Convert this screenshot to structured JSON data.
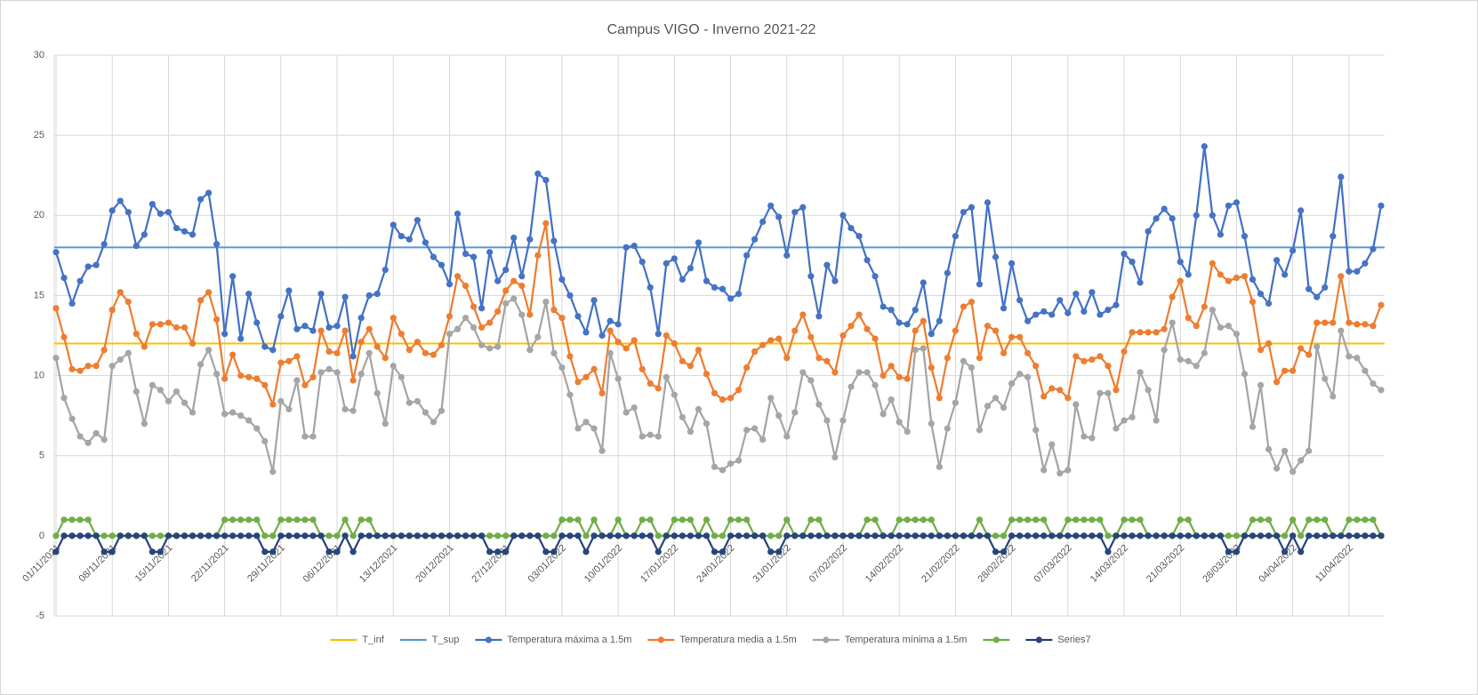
{
  "chart_data": {
    "type": "line",
    "title": "Campus VIGO -  Inverno 2021-22",
    "categories": [
      "01/11/2021",
      null,
      null,
      null,
      null,
      null,
      null,
      "08/11/2021",
      null,
      null,
      null,
      null,
      null,
      null,
      "15/11/2021",
      null,
      null,
      null,
      null,
      null,
      null,
      "22/11/2021",
      null,
      null,
      null,
      null,
      null,
      null,
      "29/11/2021",
      null,
      null,
      null,
      null,
      null,
      null,
      "06/12/2021",
      null,
      null,
      null,
      null,
      null,
      null,
      "13/12/2021",
      null,
      null,
      null,
      null,
      null,
      null,
      "20/12/2021",
      null,
      null,
      null,
      null,
      null,
      null,
      "27/12/2021",
      null,
      null,
      null,
      null,
      null,
      null,
      "03/01/2022",
      null,
      null,
      null,
      null,
      null,
      null,
      "10/01/2022",
      null,
      null,
      null,
      null,
      null,
      null,
      "17/01/2022",
      null,
      null,
      null,
      null,
      null,
      null,
      "24/01/2022",
      null,
      null,
      null,
      null,
      null,
      null,
      "31/01/2022",
      null,
      null,
      null,
      null,
      null,
      null,
      "07/02/2022",
      null,
      null,
      null,
      null,
      null,
      null,
      "14/02/2022",
      null,
      null,
      null,
      null,
      null,
      null,
      "21/02/2022",
      null,
      null,
      null,
      null,
      null,
      null,
      "28/02/2022",
      null,
      null,
      null,
      null,
      null,
      null,
      "07/03/2022",
      null,
      null,
      null,
      null,
      null,
      null,
      "14/03/2022",
      null,
      null,
      null,
      null,
      null,
      null,
      "21/03/2022",
      null,
      null,
      null,
      null,
      null,
      null,
      "28/03/2022",
      null,
      null,
      null,
      null,
      null,
      null,
      "04/04/2022",
      null,
      null,
      null,
      null,
      null,
      null,
      "11/04/2022",
      null,
      null,
      null,
      null
    ],
    "ylim": [
      -5,
      30
    ],
    "yticks": [
      -5,
      0,
      5,
      10,
      15,
      20,
      25,
      30
    ],
    "grid": true,
    "legend": "bottom",
    "reference_lines": [
      {
        "name": "T_inf",
        "color": "#ffc000",
        "value": 12
      },
      {
        "name": "T_sup",
        "color": "#5b9bd5",
        "value": 18
      }
    ],
    "series": [
      {
        "name": "Temperatura máxima a 1.5m",
        "color": "#4472c4",
        "values": [
          17.7,
          16.1,
          14.5,
          15.9,
          16.8,
          16.9,
          18.2,
          20.3,
          20.9,
          20.2,
          18.1,
          18.8,
          20.7,
          20.1,
          20.2,
          19.2,
          19.0,
          18.8,
          21.0,
          21.4,
          18.2,
          12.6,
          16.2,
          12.3,
          15.1,
          13.3,
          11.8,
          11.6,
          13.7,
          15.3,
          12.9,
          13.1,
          12.8,
          15.1,
          13.0,
          13.1,
          14.9,
          11.2,
          13.6,
          15.0,
          15.1,
          16.6,
          19.4,
          18.7,
          18.5,
          19.7,
          18.3,
          17.4,
          16.9,
          15.7,
          20.1,
          17.6,
          17.4,
          14.2,
          17.7,
          15.9,
          16.6,
          18.6,
          16.2,
          18.5,
          22.6,
          22.2,
          18.4,
          16.0,
          15.0,
          13.7,
          12.7,
          14.7,
          12.5,
          13.4,
          13.2,
          18.0,
          18.1,
          17.1,
          15.5,
          12.6,
          17.0,
          17.3,
          16.0,
          16.7,
          18.3,
          15.9,
          15.5,
          15.4,
          14.8,
          15.1,
          17.5,
          18.5,
          19.6,
          20.6,
          19.9,
          17.5,
          20.2,
          20.5,
          16.2,
          13.7,
          16.9,
          15.9,
          20.0,
          19.2,
          18.7,
          17.2,
          16.2,
          14.3,
          14.1,
          13.3,
          13.2,
          14.1,
          15.8,
          12.6,
          13.4,
          16.4,
          18.7,
          20.2,
          20.5,
          15.7,
          20.8,
          17.4,
          14.2,
          17.0,
          14.7,
          13.4,
          13.8,
          14.0,
          13.8,
          14.7,
          13.9,
          15.1,
          14.0,
          15.2,
          13.8,
          14.1,
          14.4,
          17.6,
          17.1,
          15.8,
          19.0,
          19.8,
          20.4,
          19.8,
          17.1,
          16.3,
          20.0,
          24.3,
          20.0,
          18.8,
          20.6,
          20.8,
          18.7,
          16.0,
          15.1,
          14.5,
          17.2,
          16.3,
          17.8,
          20.3,
          15.4,
          14.9,
          15.5,
          18.7,
          22.4,
          16.5,
          16.5,
          17.0,
          17.9,
          20.6
        ]
      },
      {
        "name": "Temperatura media a 1.5m",
        "color": "#ed7d31",
        "values": [
          14.2,
          12.4,
          10.4,
          10.3,
          10.6,
          10.6,
          11.6,
          14.1,
          15.2,
          14.6,
          12.6,
          11.8,
          13.2,
          13.2,
          13.3,
          13.0,
          13.0,
          12.0,
          14.7,
          15.2,
          13.5,
          9.8,
          11.3,
          10.0,
          9.9,
          9.8,
          9.4,
          8.2,
          10.8,
          10.9,
          11.2,
          9.4,
          9.9,
          12.8,
          11.5,
          11.4,
          12.8,
          9.7,
          12.1,
          12.9,
          11.8,
          11.1,
          13.6,
          12.6,
          11.6,
          12.1,
          11.4,
          11.3,
          11.9,
          13.7,
          16.2,
          15.6,
          14.3,
          13.0,
          13.3,
          14.0,
          15.3,
          15.9,
          15.6,
          13.8,
          17.5,
          19.5,
          14.1,
          13.6,
          11.2,
          9.6,
          9.9,
          10.4,
          8.9,
          12.8,
          12.1,
          11.7,
          12.2,
          10.4,
          9.5,
          9.2,
          12.5,
          12.0,
          10.9,
          10.6,
          11.6,
          10.1,
          8.9,
          8.5,
          8.6,
          9.1,
          10.5,
          11.5,
          11.9,
          12.2,
          12.3,
          11.1,
          12.8,
          13.8,
          12.4,
          11.1,
          10.9,
          10.2,
          12.5,
          13.1,
          13.8,
          12.9,
          12.3,
          10.0,
          10.6,
          9.9,
          9.8,
          12.8,
          13.4,
          10.5,
          8.6,
          11.1,
          12.8,
          14.3,
          14.6,
          11.1,
          13.1,
          12.8,
          11.4,
          12.4,
          12.4,
          11.4,
          10.6,
          8.7,
          9.2,
          9.1,
          8.6,
          11.2,
          10.9,
          11.0,
          11.2,
          10.6,
          9.1,
          11.5,
          12.7,
          12.7,
          12.7,
          12.7,
          12.9,
          14.9,
          15.9,
          13.6,
          13.1,
          14.3,
          17.0,
          16.3,
          15.9,
          16.1,
          16.2,
          14.6,
          11.6,
          12.0,
          9.6,
          10.3,
          10.3,
          11.7,
          11.3,
          13.3,
          13.3,
          13.3,
          16.2,
          13.3,
          13.2,
          13.2,
          13.1,
          14.4
        ]
      },
      {
        "name": "Temperatura mínima a 1.5m",
        "color": "#a5a5a5",
        "values": [
          11.1,
          8.6,
          7.3,
          6.2,
          5.8,
          6.4,
          6.0,
          10.6,
          11.0,
          11.4,
          9.0,
          7.0,
          9.4,
          9.1,
          8.4,
          9.0,
          8.3,
          7.7,
          10.7,
          11.6,
          10.1,
          7.6,
          7.7,
          7.5,
          7.2,
          6.7,
          5.9,
          4.0,
          8.4,
          7.9,
          9.7,
          6.2,
          6.2,
          10.2,
          10.4,
          10.2,
          7.9,
          7.8,
          10.1,
          11.4,
          8.9,
          7.0,
          10.6,
          9.9,
          8.3,
          8.4,
          7.7,
          7.1,
          7.8,
          12.6,
          12.9,
          13.6,
          13.0,
          11.9,
          11.7,
          11.8,
          14.5,
          14.8,
          13.8,
          11.6,
          12.4,
          14.6,
          11.4,
          10.5,
          8.8,
          6.7,
          7.1,
          6.7,
          5.3,
          11.4,
          9.8,
          7.7,
          8.0,
          6.2,
          6.3,
          6.2,
          9.9,
          8.8,
          7.4,
          6.5,
          7.9,
          7.0,
          4.3,
          4.1,
          4.5,
          4.7,
          6.6,
          6.7,
          6.0,
          8.6,
          7.5,
          6.2,
          7.7,
          10.2,
          9.7,
          8.2,
          7.2,
          4.9,
          7.2,
          9.3,
          10.2,
          10.2,
          9.4,
          7.6,
          8.5,
          7.1,
          6.5,
          11.6,
          11.7,
          7.0,
          4.3,
          6.7,
          8.3,
          10.9,
          10.5,
          6.6,
          8.1,
          8.6,
          8.0,
          9.5,
          10.1,
          9.9,
          6.6,
          4.1,
          5.7,
          3.9,
          4.1,
          8.2,
          6.2,
          6.1,
          8.9,
          8.9,
          6.7,
          7.2,
          7.4,
          10.2,
          9.1,
          7.2,
          11.6,
          13.3,
          11.0,
          10.9,
          10.6,
          11.4,
          14.1,
          13.0,
          13.1,
          12.6,
          10.1,
          6.8,
          9.4,
          5.4,
          4.2,
          5.3,
          4.0,
          4.7,
          5.3,
          11.8,
          9.8,
          8.7,
          12.8,
          11.2,
          11.1,
          10.3,
          9.5,
          9.1
        ]
      },
      {
        "color": "#70ad47",
        "values": [
          0,
          1,
          1,
          1,
          1,
          0,
          0,
          0,
          0,
          0,
          0,
          0,
          0,
          0,
          0,
          0,
          0,
          0,
          0,
          0,
          0,
          1,
          1,
          1,
          1,
          1,
          0,
          0,
          1,
          1,
          1,
          1,
          1,
          0,
          0,
          0,
          1,
          0,
          1,
          1,
          0,
          0,
          0,
          0,
          0,
          0,
          0,
          0,
          0,
          0,
          0,
          0,
          0,
          0,
          0,
          0,
          0,
          0,
          0,
          0,
          0,
          0,
          0,
          1,
          1,
          1,
          0,
          1,
          0,
          0,
          1,
          0,
          0,
          1,
          1,
          0,
          0,
          1,
          1,
          1,
          0,
          1,
          0,
          0,
          1,
          1,
          1,
          0,
          0,
          0,
          0,
          1,
          0,
          0,
          1,
          1,
          0,
          0,
          0,
          0,
          0,
          1,
          1,
          0,
          0,
          1,
          1,
          1,
          1,
          1,
          0,
          0,
          0,
          0,
          0,
          1,
          0,
          0,
          0,
          1,
          1,
          1,
          1,
          1,
          0,
          0,
          1,
          1,
          1,
          1,
          1,
          0,
          0,
          1,
          1,
          1,
          0,
          0,
          0,
          0,
          1,
          1,
          0,
          0,
          0,
          0,
          0,
          0,
          0,
          1,
          1,
          1,
          0,
          0,
          1,
          0,
          1,
          1,
          1,
          0,
          0,
          1,
          1,
          1,
          1,
          0
        ]
      },
      {
        "name": "Series7",
        "color": "#264478",
        "values": [
          -1,
          0,
          0,
          0,
          0,
          0,
          -1,
          -1,
          0,
          0,
          0,
          0,
          -1,
          -1,
          0,
          0,
          0,
          0,
          0,
          0,
          0,
          0,
          0,
          0,
          0,
          0,
          -1,
          -1,
          0,
          0,
          0,
          0,
          0,
          0,
          -1,
          -1,
          0,
          -1,
          0,
          0,
          0,
          0,
          0,
          0,
          0,
          0,
          0,
          0,
          0,
          0,
          0,
          0,
          0,
          0,
          -1,
          -1,
          -1,
          0,
          0,
          0,
          0,
          -1,
          -1,
          0,
          0,
          0,
          -1,
          0,
          0,
          0,
          0,
          0,
          0,
          0,
          0,
          -1,
          0,
          0,
          0,
          0,
          0,
          0,
          -1,
          -1,
          0,
          0,
          0,
          0,
          0,
          -1,
          -1,
          0,
          0,
          0,
          0,
          0,
          0,
          0,
          0,
          0,
          0,
          0,
          0,
          0,
          0,
          0,
          0,
          0,
          0,
          0,
          0,
          0,
          0,
          0,
          0,
          0,
          0,
          -1,
          -1,
          0,
          0,
          0,
          0,
          0,
          0,
          0,
          0,
          0,
          0,
          0,
          0,
          -1,
          0,
          0,
          0,
          0,
          0,
          0,
          0,
          0,
          0,
          0,
          0,
          0,
          0,
          0,
          -1,
          -1,
          0,
          0,
          0,
          0,
          0,
          -1,
          0,
          -1,
          0,
          0,
          0,
          0,
          0,
          0,
          0,
          0,
          0,
          0
        ]
      }
    ]
  }
}
